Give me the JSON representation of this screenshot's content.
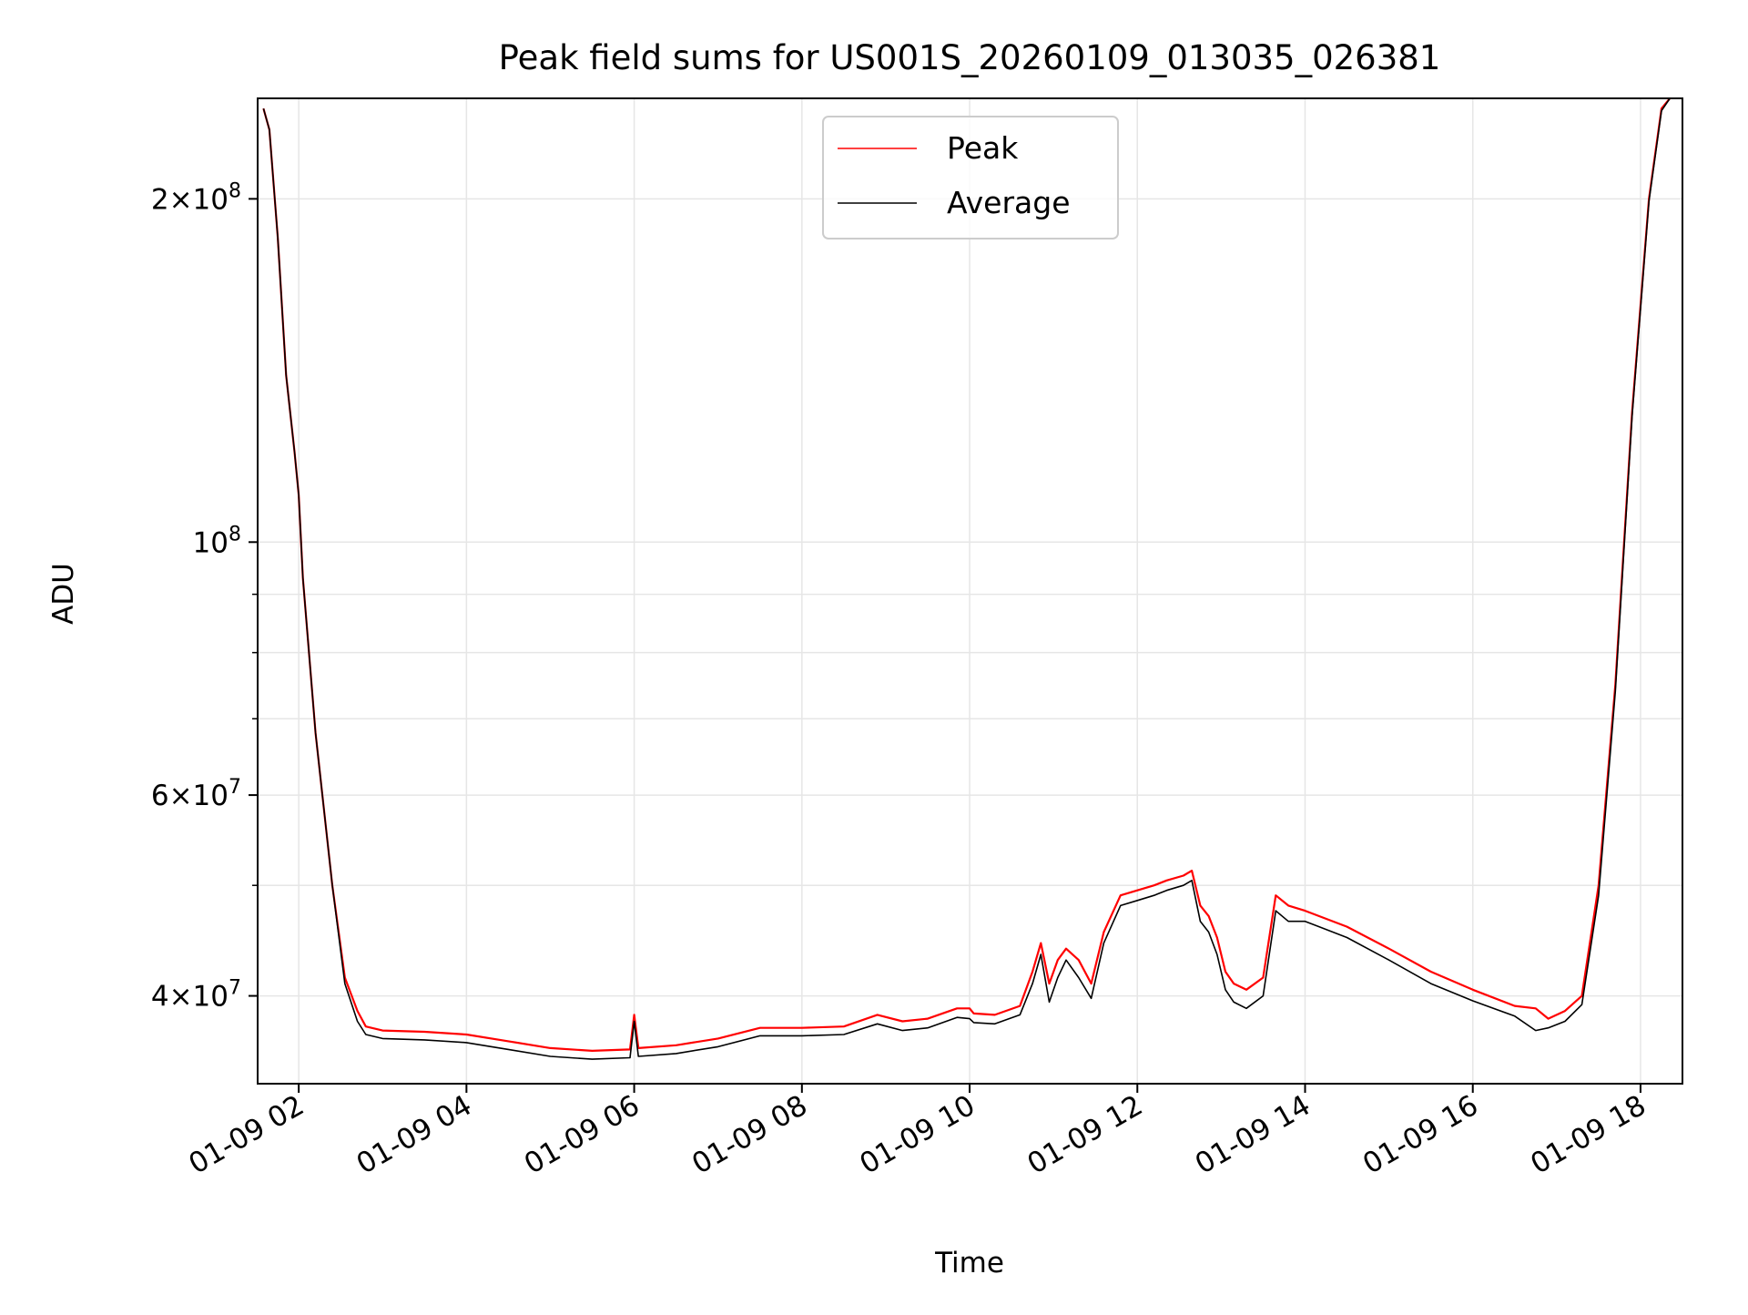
{
  "chart_data": {
    "type": "line",
    "title": "Peak field sums for US001S_20260109_013035_026381",
    "xlabel": "Time",
    "ylabel": "ADU",
    "x_unit": "hours of 2026-01-09",
    "xlim": [
      1.51,
      18.5
    ],
    "ylim": [
      33500000,
      245000000
    ],
    "yscale": "log",
    "grid": true,
    "legend_position": "top-center",
    "x_ticks": [
      {
        "value": 2,
        "label": "01-09 02"
      },
      {
        "value": 4,
        "label": "01-09 04"
      },
      {
        "value": 6,
        "label": "01-09 06"
      },
      {
        "value": 8,
        "label": "01-09 08"
      },
      {
        "value": 10,
        "label": "01-09 10"
      },
      {
        "value": 12,
        "label": "01-09 12"
      },
      {
        "value": 14,
        "label": "01-09 14"
      },
      {
        "value": 16,
        "label": "01-09 16"
      },
      {
        "value": 18,
        "label": "01-09 18"
      }
    ],
    "y_major_ticks": [
      {
        "value": 40000000,
        "mantissa": "4",
        "exponent": "7"
      },
      {
        "value": 60000000,
        "mantissa": "6",
        "exponent": "7"
      },
      {
        "value": 100000000,
        "mantissa": "",
        "exponent": "8"
      },
      {
        "value": 200000000,
        "mantissa": "2",
        "exponent": "8"
      }
    ],
    "y_minor_ticks": [
      50000000,
      70000000,
      80000000,
      90000000
    ],
    "series": [
      {
        "name": "Peak",
        "color": "#ff0000",
        "x": [
          1.58,
          1.65,
          1.75,
          1.85,
          1.95,
          2.0,
          2.05,
          2.2,
          2.4,
          2.55,
          2.7,
          2.8,
          3.0,
          3.5,
          4.0,
          4.5,
          5.0,
          5.5,
          5.95,
          6.0,
          6.05,
          6.5,
          7.0,
          7.5,
          8.0,
          8.5,
          8.9,
          9.2,
          9.5,
          9.85,
          10.0,
          10.05,
          10.3,
          10.6,
          10.75,
          10.85,
          10.95,
          11.05,
          11.15,
          11.3,
          11.45,
          11.6,
          11.8,
          12.0,
          12.2,
          12.35,
          12.55,
          12.65,
          12.75,
          12.85,
          12.95,
          13.05,
          13.15,
          13.3,
          13.5,
          13.65,
          13.8,
          14.0,
          14.5,
          15.0,
          15.5,
          16.0,
          16.5,
          16.75,
          16.9,
          17.1,
          17.3,
          17.5,
          17.7,
          17.9,
          18.1,
          18.25,
          18.35
        ],
        "values": [
          240000000,
          230000000,
          185000000,
          140000000,
          120000000,
          110000000,
          93000000,
          68000000,
          50000000,
          41500000,
          38800000,
          37600000,
          37300000,
          37200000,
          37000000,
          36500000,
          36000000,
          35800000,
          35900000,
          38500000,
          36000000,
          36200000,
          36700000,
          37500000,
          37500000,
          37600000,
          38500000,
          38000000,
          38200000,
          39000000,
          39000000,
          38600000,
          38500000,
          39200000,
          42000000,
          44500000,
          41000000,
          43000000,
          44000000,
          43000000,
          41000000,
          45500000,
          49000000,
          49500000,
          50000000,
          50500000,
          51000000,
          51500000,
          48000000,
          47000000,
          45000000,
          42000000,
          41000000,
          40500000,
          41500000,
          49000000,
          48000000,
          47500000,
          46000000,
          44000000,
          42000000,
          40500000,
          39200000,
          39000000,
          38200000,
          38800000,
          40000000,
          50000000,
          75000000,
          130000000,
          200000000,
          240000000,
          245000000
        ]
      },
      {
        "name": "Average",
        "color": "#000000",
        "x": [
          1.58,
          1.65,
          1.75,
          1.85,
          1.95,
          2.0,
          2.05,
          2.2,
          2.4,
          2.55,
          2.7,
          2.8,
          3.0,
          3.5,
          4.0,
          4.5,
          5.0,
          5.5,
          5.95,
          6.0,
          6.05,
          6.5,
          7.0,
          7.5,
          8.0,
          8.5,
          8.9,
          9.2,
          9.5,
          9.85,
          10.0,
          10.05,
          10.3,
          10.6,
          10.75,
          10.85,
          10.95,
          11.05,
          11.15,
          11.3,
          11.45,
          11.6,
          11.8,
          12.0,
          12.2,
          12.35,
          12.55,
          12.65,
          12.75,
          12.85,
          12.95,
          13.05,
          13.15,
          13.3,
          13.5,
          13.65,
          13.8,
          14.0,
          14.5,
          15.0,
          15.5,
          16.0,
          16.5,
          16.75,
          16.9,
          17.1,
          17.3,
          17.5,
          17.7,
          17.9,
          18.1,
          18.25,
          18.35
        ],
        "values": [
          240000000,
          230000000,
          185000000,
          140000000,
          120000000,
          110000000,
          93000000,
          68000000,
          50000000,
          41000000,
          38000000,
          37000000,
          36700000,
          36600000,
          36400000,
          35900000,
          35400000,
          35200000,
          35300000,
          38000000,
          35400000,
          35600000,
          36100000,
          36900000,
          36900000,
          37000000,
          37800000,
          37300000,
          37500000,
          38300000,
          38200000,
          37900000,
          37800000,
          38500000,
          41000000,
          43500000,
          39500000,
          41500000,
          43000000,
          41500000,
          39800000,
          44500000,
          48000000,
          48500000,
          49000000,
          49500000,
          50000000,
          50500000,
          46500000,
          45500000,
          43500000,
          40500000,
          39500000,
          39000000,
          40000000,
          47500000,
          46500000,
          46500000,
          45000000,
          43000000,
          41000000,
          39600000,
          38400000,
          37300000,
          37500000,
          38000000,
          39300000,
          49000000,
          74000000,
          129000000,
          199000000,
          239000000,
          245000000
        ]
      }
    ]
  }
}
